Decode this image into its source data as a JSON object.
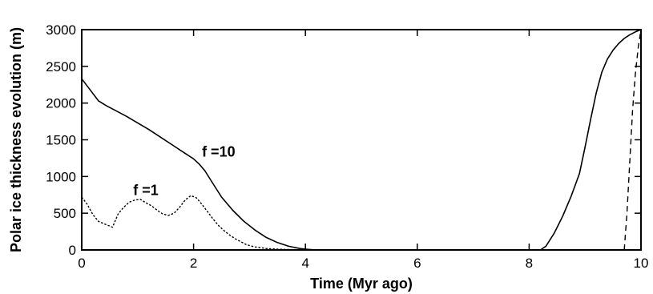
{
  "chart_data": {
    "type": "line",
    "xlabel": "Time (Myr ago)",
    "ylabel": "Polar ice thickness evolution (m)",
    "xlim": [
      0,
      10
    ],
    "ylim": [
      0,
      3000
    ],
    "xticks": [
      0,
      2,
      4,
      6,
      8,
      10
    ],
    "yticks": [
      0,
      500,
      1000,
      1500,
      2000,
      2500,
      3000
    ],
    "grid": false,
    "annotations": [
      {
        "text": "f =10",
        "x": 2.15,
        "y": 1270
      },
      {
        "text": "f =1",
        "x": 0.92,
        "y": 750
      }
    ],
    "series": [
      {
        "style": "solid",
        "x": [
          0,
          0.15,
          0.3,
          0.45,
          0.6,
          0.8,
          1.0,
          1.2,
          1.4,
          1.6,
          1.8,
          2.0,
          2.1,
          2.2,
          2.35,
          2.5,
          2.7,
          2.9,
          3.1,
          3.3,
          3.5,
          3.7,
          3.9,
          4.0,
          4.2,
          8.2,
          8.3,
          8.45,
          8.6,
          8.75,
          8.9,
          9.0,
          9.1,
          9.2,
          9.3,
          9.4,
          9.5,
          9.6,
          9.7,
          9.8,
          9.9,
          10.0
        ],
        "y": [
          2330,
          2180,
          2030,
          1960,
          1900,
          1820,
          1730,
          1640,
          1540,
          1440,
          1340,
          1240,
          1170,
          1080,
          900,
          720,
          540,
          390,
          270,
          170,
          100,
          50,
          20,
          10,
          0,
          0,
          50,
          230,
          460,
          730,
          1040,
          1400,
          1780,
          2140,
          2420,
          2600,
          2720,
          2810,
          2880,
          2930,
          2970,
          3000
        ]
      },
      {
        "style": "dotted",
        "x": [
          0,
          0.1,
          0.2,
          0.3,
          0.45,
          0.55,
          0.65,
          0.75,
          0.85,
          0.95,
          1.05,
          1.15,
          1.25,
          1.35,
          1.45,
          1.55,
          1.65,
          1.75,
          1.85,
          1.95,
          2.05,
          2.15,
          2.25,
          2.35,
          2.45,
          2.55,
          2.65,
          2.75,
          2.85,
          2.95,
          3.1,
          3.3,
          3.5,
          3.7,
          3.9,
          4.1,
          4.3
        ],
        "y": [
          720,
          620,
          480,
          390,
          340,
          310,
          490,
          580,
          650,
          680,
          690,
          640,
          600,
          540,
          490,
          470,
          500,
          580,
          680,
          740,
          710,
          620,
          520,
          420,
          330,
          260,
          200,
          150,
          110,
          70,
          40,
          20,
          10,
          5,
          3,
          0,
          0
        ]
      },
      {
        "style": "dashed",
        "x": [
          9.7,
          9.75,
          9.8,
          9.85,
          9.9,
          9.95,
          10.0
        ],
        "y": [
          0,
          500,
          1200,
          1900,
          2400,
          2750,
          3000
        ]
      }
    ]
  }
}
